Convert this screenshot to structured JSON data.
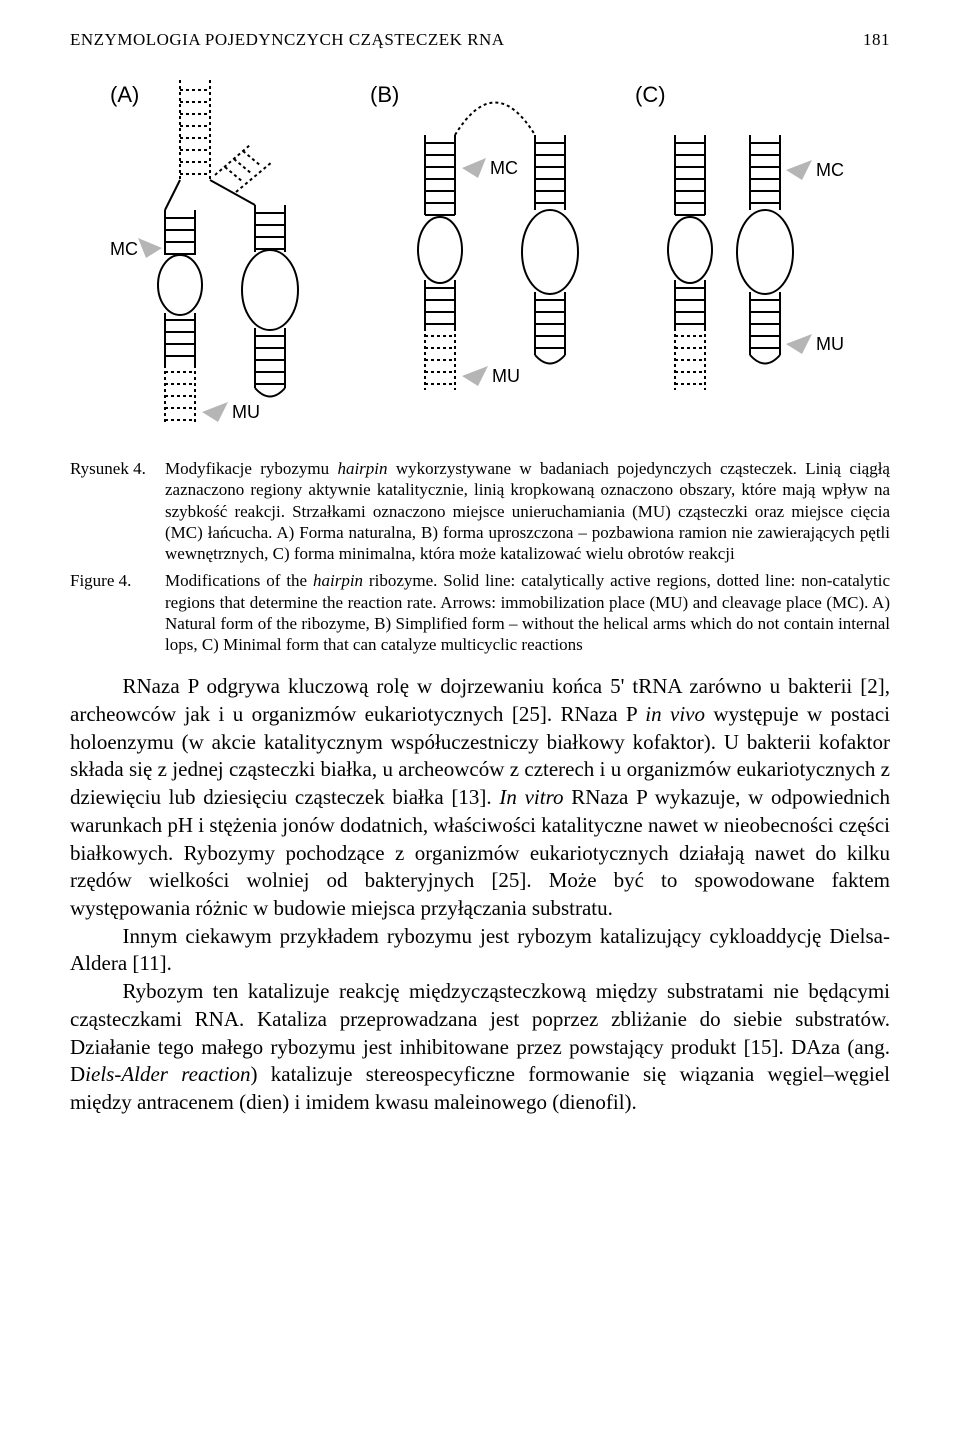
{
  "running_head": {
    "title": "ENZYMOLOGIA POJEDYNCZYCH CZĄSTECZEK RNA",
    "page_number": "181"
  },
  "figure": {
    "panel_labels": {
      "a": "(A)",
      "b": "(B)",
      "c": "(C)"
    },
    "arrow_labels": {
      "mc": "MC",
      "mu": "MU"
    },
    "colors": {
      "stroke": "#000000",
      "fill_bg": "#ffffff",
      "arrow_fill": "#b5b5b5",
      "dash": "#000000"
    },
    "stroke_width": 2,
    "dash_pattern": "3,3",
    "panel_label_fontsize": 22,
    "arrow_label_fontsize": 18
  },
  "caption_pl": {
    "label": "Rysunek 4.",
    "text_html": "Modyfikacje rybozymu <i>hairpin</i> wykorzystywane w badaniach pojedynczych cząsteczek. Linią ciągłą zaznaczono regiony aktywnie katalitycznie, linią kropkowaną oznaczono obszary, które mają wpływ na szybkość reakcji. Strzałkami oznaczono miejsce unieruchamiania (MU) cząsteczki oraz miejsce cięcia (MC) łańcucha. A) Forma naturalna, B) forma uproszczona – pozbawiona ramion nie zawierających pętli wewnętrznych, C) forma minimalna, która może katalizować wielu obrotów reakcji"
  },
  "caption_en": {
    "label": "Figure 4.",
    "text_html": "Modifications of the <i>hairpin</i> ribozyme. Solid line: catalytically active regions, dotted line: non-catalytic regions that determine the reaction rate. Arrows: immobilization place (MU) and cleavage place (MC). A) Natural form of the ribozyme, B) Simplified form – without the helical arms which do not contain internal lops, C) Minimal form that can catalyze multicyclic reactions"
  },
  "body": {
    "p1_html": "RNaza P odgrywa kluczową rolę w dojrzewaniu końca 5' tRNA zarówno u bakterii [2], archeowców jak i u organizmów eukariotycznych [25]. RNaza P <i>in vivo</i> występuje w postaci holoenzymu (w akcie katalitycznym współuczestniczy białkowy kofaktor). U bakterii kofaktor składa się z jednej cząsteczki białka, u archeowców z czterech i u organizmów eukariotycznych z dziewięciu lub dziesięciu cząsteczek białka [13]. <i>In vitro</i> RNaza P wykazuje, w odpowiednich warunkach pH i stężenia jonów dodatnich, właściwości katalityczne nawet w nieobecności części białkowych. Rybozymy pochodzące z organizmów eukariotycznych działają nawet do kilku rzędów wielkości wolniej od bakteryjnych [25]. Może być to spowodowane faktem występowania różnic w budowie miejsca przyłączania substratu.",
    "p2_html": "Innym ciekawym przykładem rybozymu jest rybozym katalizujący cykloaddycję Dielsa-Aldera [11].",
    "p3_html": "Rybozym ten katalizuje reakcję międzycząsteczkową między substratami nie będącymi cząsteczkami RNA. Kataliza przeprowadzana jest poprzez zbliżanie do siebie substratów. Działanie tego małego rybozymu jest inhibitowane przez powstający produkt [15]. DAza (ang. D<i>iels-Alder reaction</i>) katalizuje stereospecyficzne formowanie się wiązania węgiel–węgiel między antracenem (dien) i imidem kwasu maleinowego (dienofil)."
  }
}
